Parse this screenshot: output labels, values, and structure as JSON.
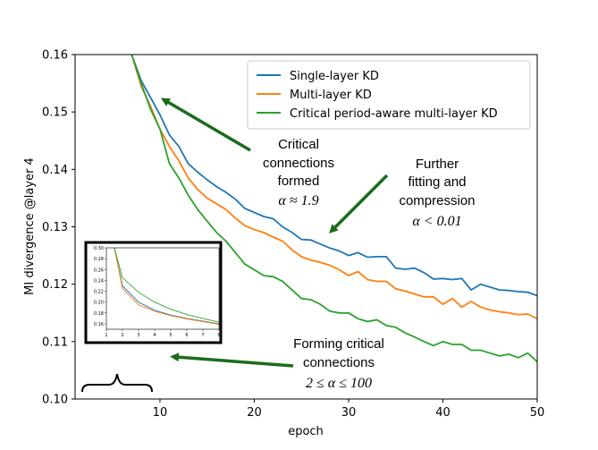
{
  "chart_data": {
    "type": "line",
    "title": "",
    "xlabel": "epoch",
    "ylabel": "MI divergence @layer 4",
    "xlim": [
      1,
      50
    ],
    "ylim": [
      0.1,
      0.16
    ],
    "xticks": [
      10,
      20,
      30,
      40,
      50
    ],
    "yticks": [
      0.1,
      0.11,
      0.12,
      0.13,
      0.14,
      0.15,
      0.16
    ],
    "xtick_labels": [
      "10",
      "20",
      "30",
      "40",
      "50"
    ],
    "ytick_labels": [
      "0.10",
      "0.11",
      "0.12",
      "0.13",
      "0.14",
      "0.15",
      "0.16"
    ],
    "grid": false,
    "legend_position": "top-right",
    "x": [
      7,
      8,
      9,
      10,
      11,
      12,
      13,
      14,
      15,
      16,
      17,
      18,
      19,
      20,
      21,
      22,
      23,
      24,
      25,
      26,
      27,
      28,
      29,
      30,
      31,
      32,
      33,
      34,
      35,
      36,
      37,
      38,
      39,
      40,
      41,
      42,
      43,
      44,
      45,
      46,
      47,
      48,
      49,
      50
    ],
    "series": [
      {
        "name": "Single-layer KD",
        "color": "#1f77b4",
        "values": [
          0.16,
          0.1555,
          0.1525,
          0.1495,
          0.146,
          0.144,
          0.141,
          0.1395,
          0.1382,
          0.137,
          0.136,
          0.1348,
          0.1332,
          0.1325,
          0.1318,
          0.1314,
          0.13,
          0.129,
          0.1278,
          0.1277,
          0.127,
          0.1263,
          0.1258,
          0.125,
          0.1255,
          0.1247,
          0.1248,
          0.1248,
          0.1228,
          0.1226,
          0.1228,
          0.122,
          0.1209,
          0.121,
          0.1208,
          0.121,
          0.119,
          0.12,
          0.1195,
          0.119,
          0.1189,
          0.1187,
          0.1186,
          0.118
        ]
      },
      {
        "name": "Multi-layer KD",
        "color": "#ff7f0e",
        "values": [
          0.16,
          0.1545,
          0.151,
          0.147,
          0.144,
          0.1415,
          0.1385,
          0.1365,
          0.135,
          0.134,
          0.133,
          0.1315,
          0.1302,
          0.1295,
          0.129,
          0.1282,
          0.1275,
          0.126,
          0.1248,
          0.1242,
          0.1238,
          0.1233,
          0.1225,
          0.1215,
          0.1222,
          0.1208,
          0.1205,
          0.1205,
          0.1192,
          0.1188,
          0.1183,
          0.1178,
          0.1178,
          0.1165,
          0.1175,
          0.116,
          0.117,
          0.116,
          0.1155,
          0.1152,
          0.115,
          0.1147,
          0.1148,
          0.114
        ]
      },
      {
        "name": "Critical period-aware multi-layer KD",
        "color": "#2ca02c",
        "values": [
          0.16,
          0.155,
          0.1505,
          0.147,
          0.141,
          0.1385,
          0.1355,
          0.133,
          0.131,
          0.129,
          0.1275,
          0.1255,
          0.1235,
          0.1225,
          0.1215,
          0.1213,
          0.1205,
          0.119,
          0.1175,
          0.1173,
          0.1165,
          0.1153,
          0.115,
          0.115,
          0.114,
          0.1135,
          0.1138,
          0.1128,
          0.1125,
          0.1115,
          0.1108,
          0.11,
          0.1093,
          0.11,
          0.1095,
          0.1095,
          0.1085,
          0.1085,
          0.108,
          0.1075,
          0.1078,
          0.1072,
          0.108,
          0.1065
        ]
      }
    ],
    "annotations": [
      {
        "lines": [
          "Critical",
          "connections",
          "formed"
        ],
        "math": "α ≈ 1.9"
      },
      {
        "lines": [
          "Further",
          "fitting and",
          "compression"
        ],
        "math": "α < 0.01"
      },
      {
        "lines": [
          "Forming critical",
          "connections"
        ],
        "math": "2 ≤ α ≤ 100"
      }
    ],
    "inset": {
      "xticks": [
        1,
        2,
        3,
        4,
        5,
        6,
        7,
        8
      ],
      "xtick_labels": [
        "1",
        "2",
        "3",
        "4",
        "5",
        "6",
        "7",
        "8"
      ],
      "yticks": [
        0.16,
        0.18,
        0.2,
        0.22,
        0.24,
        0.26,
        0.28,
        0.3
      ],
      "ytick_labels": [
        "0.16",
        "0.18",
        "0.20",
        "0.22",
        "0.24",
        "0.26",
        "0.28",
        "0.30"
      ],
      "xlim": [
        1,
        8
      ],
      "ylim": [
        0.15,
        0.3
      ],
      "x": [
        1.5,
        2,
        3,
        4,
        5,
        6,
        7,
        8
      ],
      "series": [
        {
          "color": "#1f77b4",
          "values": [
            0.3,
            0.23,
            0.2,
            0.185,
            0.176,
            0.17,
            0.165,
            0.16
          ]
        },
        {
          "color": "#ff7f0e",
          "values": [
            0.3,
            0.225,
            0.195,
            0.183,
            0.175,
            0.169,
            0.164,
            0.159
          ]
        },
        {
          "color": "#2ca02c",
          "values": [
            0.3,
            0.245,
            0.218,
            0.2,
            0.187,
            0.177,
            0.17,
            0.163
          ]
        }
      ]
    }
  }
}
